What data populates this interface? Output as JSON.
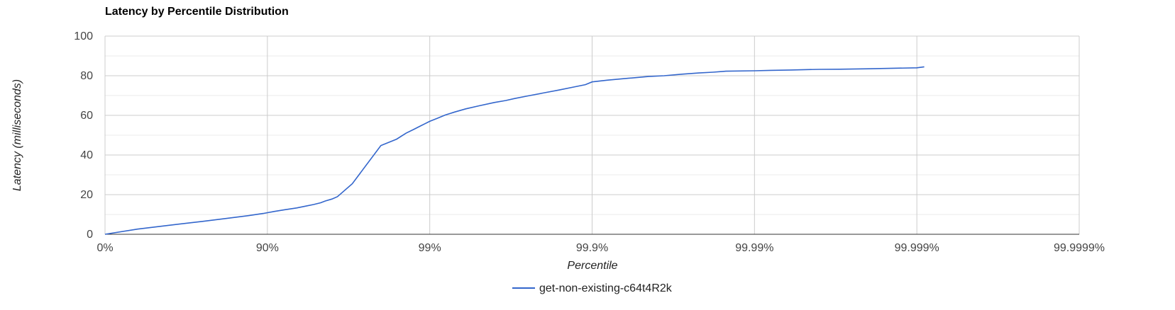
{
  "chart_data": {
    "type": "line",
    "title": "Latency by Percentile Distribution",
    "xlabel": "Percentile",
    "ylabel": "Latency (milliseconds)",
    "x_scale": "log-nines",
    "x_ticks": [
      "0%",
      "90%",
      "99%",
      "99.9%",
      "99.99%",
      "99.999%",
      "99.9999%"
    ],
    "y_ticks": [
      "0",
      "20",
      "40",
      "60",
      "80",
      "100"
    ],
    "ylim": [
      0,
      100
    ],
    "grid": true,
    "legend": "bottom",
    "series": [
      {
        "name": "get-non-existing-c64t4R2k",
        "color": "#3366cc",
        "points": [
          [
            0,
            0.0
          ],
          [
            37.0,
            2.6
          ],
          [
            59.3,
            4.5
          ],
          [
            74.9,
            6.5
          ],
          [
            82.2,
            8.0
          ],
          [
            86.9,
            9.4
          ],
          [
            89.4,
            10.5
          ],
          [
            90.9,
            11.5
          ],
          [
            92.2,
            12.4
          ],
          [
            93.4,
            13.3
          ],
          [
            94.2,
            14.2
          ],
          [
            94.8,
            15.0
          ],
          [
            95.3,
            15.9
          ],
          [
            95.6,
            16.8
          ],
          [
            96.0,
            17.8
          ],
          [
            96.3,
            19.0
          ],
          [
            97.0,
            25.5
          ],
          [
            98.0,
            44.8
          ],
          [
            98.4,
            48.0
          ],
          [
            98.6,
            51.0
          ],
          [
            98.75,
            53.0
          ],
          [
            98.85,
            54.5
          ],
          [
            98.93,
            55.8
          ],
          [
            99.0,
            57.0
          ],
          [
            99.1,
            58.5
          ],
          [
            99.2,
            60.2
          ],
          [
            99.3,
            61.7
          ],
          [
            99.4,
            63.3
          ],
          [
            99.5,
            64.8
          ],
          [
            99.6,
            66.5
          ],
          [
            99.66,
            67.5
          ],
          [
            99.7,
            68.5
          ],
          [
            99.75,
            69.8
          ],
          [
            99.8,
            71.3
          ],
          [
            99.84,
            72.8
          ],
          [
            99.87,
            74.3
          ],
          [
            99.89,
            75.5
          ],
          [
            99.9,
            76.9
          ],
          [
            99.92,
            77.8
          ],
          [
            99.94,
            78.7
          ],
          [
            99.955,
            79.6
          ],
          [
            99.964,
            80.0
          ],
          [
            99.972,
            80.8
          ],
          [
            99.978,
            81.4
          ],
          [
            99.982,
            81.8
          ],
          [
            99.985,
            82.3
          ],
          [
            99.99,
            82.5
          ],
          [
            99.992,
            82.7
          ],
          [
            99.994,
            82.9
          ],
          [
            99.996,
            83.2
          ],
          [
            99.997,
            83.3
          ],
          [
            99.998,
            83.5
          ],
          [
            99.999,
            84.0
          ],
          [
            99.9991,
            84.5
          ]
        ]
      }
    ]
  }
}
